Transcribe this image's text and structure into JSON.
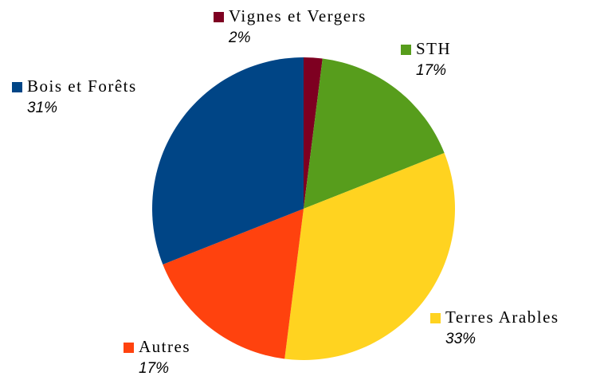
{
  "chart_data": {
    "type": "pie",
    "categories": [
      "Vignes et Vergers",
      "STH",
      "Terres Arables",
      "Autres",
      "Bois et Forêts"
    ],
    "values": [
      2,
      17,
      33,
      17,
      31
    ],
    "value_labels": [
      "2%",
      "17%",
      "33%",
      "17%",
      "31%"
    ],
    "colors": [
      "#7e0021",
      "#579d1c",
      "#ffd320",
      "#ff420e",
      "#004586"
    ]
  }
}
